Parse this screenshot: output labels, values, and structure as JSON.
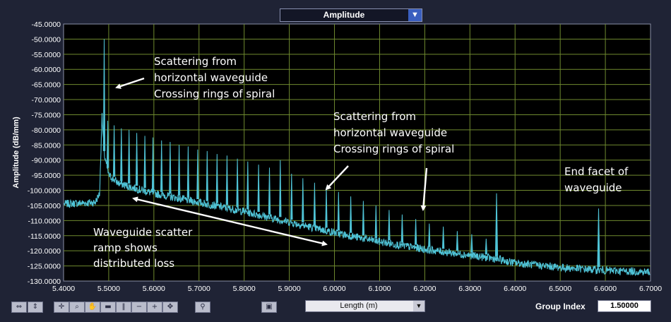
{
  "panel": {
    "mode_select": {
      "value": "Amplitude",
      "arrow": "▼"
    },
    "toolbar": {
      "buttons": [
        {
          "icon": "zoom-fit-x-icon",
          "glyph": "⇔"
        },
        {
          "icon": "zoom-fit-y-icon",
          "glyph": "⇕"
        },
        {
          "icon": "crosshair-icon",
          "glyph": "✛"
        },
        {
          "icon": "zoom-icon",
          "glyph": "⌕"
        },
        {
          "icon": "hand-pan-icon",
          "glyph": "✋"
        },
        {
          "icon": "marker-icon",
          "glyph": "▬"
        },
        {
          "icon": "cursor-lines-icon",
          "glyph": "‖"
        },
        {
          "icon": "delete-cursor-icon",
          "glyph": "−"
        },
        {
          "icon": "add-marker-icon",
          "glyph": "+"
        },
        {
          "icon": "move-icon",
          "glyph": "✥"
        },
        {
          "icon": "autoscale-icon",
          "glyph": "⚲"
        },
        {
          "icon": "save-icon",
          "glyph": "▣"
        }
      ],
      "xunit_select": {
        "value": "Length (m)",
        "arrow": "▼"
      },
      "group_index_label": "Group Index",
      "group_index_value": "1.50000"
    },
    "colors": {
      "background": "#1f2335",
      "plot_background": "#000000",
      "grid": "#6f8a2f",
      "trace": "#4fc3d6",
      "text": "#ffffff"
    }
  },
  "chart_data": {
    "type": "line",
    "title": "",
    "xlabel": "",
    "ylabel": "Amplitude (dB/mm)",
    "xlim": [
      5.4,
      6.7
    ],
    "ylim": [
      -130,
      -45
    ],
    "grid": true,
    "xticks": [
      "5.4000",
      "5.5000",
      "5.6000",
      "5.7000",
      "5.8000",
      "5.9000",
      "6.0000",
      "6.1000",
      "6.2000",
      "6.3000",
      "6.4000",
      "6.5000",
      "6.6000",
      "6.7000"
    ],
    "yticks": [
      "-45.0000",
      "-50.0000",
      "-55.0000",
      "-60.0000",
      "-65.0000",
      "-70.0000",
      "-75.0000",
      "-80.0000",
      "-85.0000",
      "-90.0000",
      "-95.0000",
      "-100.0000",
      "-105.0000",
      "-110.0000",
      "-115.0000",
      "-120.0000",
      "-125.0000",
      "-130.0000"
    ],
    "baseline": {
      "x": [
        5.4,
        5.47,
        5.48,
        5.485,
        5.49,
        5.5,
        5.52,
        5.55,
        5.6,
        5.7,
        5.8,
        5.9,
        6.0,
        6.1,
        6.2,
        6.3,
        6.35,
        6.36,
        6.4,
        6.5,
        6.6,
        6.7
      ],
      "y": [
        -104.5,
        -104.0,
        -101.0,
        -75.0,
        -88.0,
        -95.0,
        -97.5,
        -99.0,
        -101.0,
        -104.0,
        -107.0,
        -110.5,
        -114.0,
        -117.0,
        -119.5,
        -121.5,
        -122.5,
        -122.8,
        -124.0,
        -125.5,
        -126.5,
        -127.0
      ]
    },
    "peaks": [
      {
        "x": 5.49,
        "y": -50.0
      },
      {
        "x": 5.498,
        "y": -77.0
      },
      {
        "x": 5.512,
        "y": -78.5
      },
      {
        "x": 5.528,
        "y": -79.5
      },
      {
        "x": 5.545,
        "y": -80.0
      },
      {
        "x": 5.562,
        "y": -81.0
      },
      {
        "x": 5.58,
        "y": -82.0
      },
      {
        "x": 5.598,
        "y": -82.5
      },
      {
        "x": 5.617,
        "y": -83.5
      },
      {
        "x": 5.636,
        "y": -84.0
      },
      {
        "x": 5.656,
        "y": -85.0
      },
      {
        "x": 5.676,
        "y": -85.5
      },
      {
        "x": 5.697,
        "y": -86.5
      },
      {
        "x": 5.718,
        "y": -87.0
      },
      {
        "x": 5.74,
        "y": -88.0
      },
      {
        "x": 5.762,
        "y": -88.5
      },
      {
        "x": 5.785,
        "y": -89.5
      },
      {
        "x": 5.808,
        "y": -90.5
      },
      {
        "x": 5.832,
        "y": -91.5
      },
      {
        "x": 5.856,
        "y": -92.5
      },
      {
        "x": 5.88,
        "y": -90.0
      },
      {
        "x": 5.905,
        "y": -94.5
      },
      {
        "x": 5.93,
        "y": -96.0
      },
      {
        "x": 5.956,
        "y": -97.5
      },
      {
        "x": 5.982,
        "y": -99.0
      },
      {
        "x": 6.009,
        "y": -100.5
      },
      {
        "x": 6.036,
        "y": -102.0
      },
      {
        "x": 6.064,
        "y": -103.5
      },
      {
        "x": 6.092,
        "y": -105.0
      },
      {
        "x": 6.121,
        "y": -106.5
      },
      {
        "x": 6.15,
        "y": -108.0
      },
      {
        "x": 6.18,
        "y": -109.5
      },
      {
        "x": 6.21,
        "y": -111.0
      },
      {
        "x": 6.241,
        "y": -112.0
      },
      {
        "x": 6.272,
        "y": -113.5
      },
      {
        "x": 6.304,
        "y": -114.5
      },
      {
        "x": 6.336,
        "y": -116.0
      },
      {
        "x": 6.359,
        "y": -101.0
      },
      {
        "x": 6.585,
        "y": -106.0
      }
    ],
    "annotations": [
      {
        "lines": [
          "Scattering from",
          "horizontal waveguide",
          "Crossing rings of spiral"
        ]
      },
      {
        "lines": [
          "Scattering from",
          "horizontal waveguide",
          "Crossing rings of spiral"
        ]
      },
      {
        "lines": [
          "Waveguide scatter",
          "ramp shows",
          "distributed loss"
        ]
      },
      {
        "lines": [
          "End facet of",
          "waveguide"
        ]
      }
    ]
  }
}
